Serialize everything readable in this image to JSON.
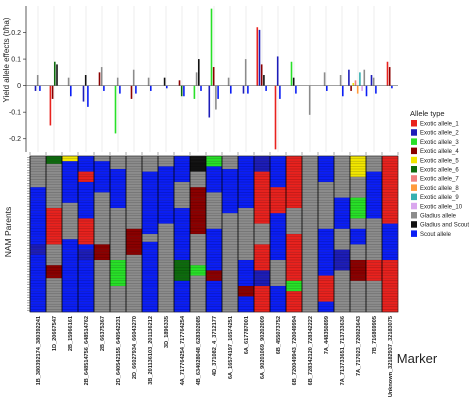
{
  "chart_data": [
    {
      "type": "bar",
      "ylabel": "Yield allele effects (t/ha)",
      "ylim": [
        -0.25,
        0.3
      ],
      "yticks": [
        -0.2,
        -0.1,
        0,
        0.1,
        0.2
      ],
      "ytick_labels": [
        "-0.2",
        "-0.1",
        "0",
        "0.1",
        "0.2"
      ],
      "categories": [
        "1B_380392174_380392241",
        "1D_20667547",
        "2B_15966161",
        "2B_648514756_648514762",
        "2B_66375367",
        "2D_640542155_640542231",
        "2D_66027934_66043270",
        "3B_201136103_201136212",
        "3D_1896335",
        "4A_717764254_717764254",
        "4B_634028048_628302085",
        "4D_371082_4_3712177",
        "6A_16574197_16574251",
        "6A_617787001",
        "6A_90201069_90202009",
        "6B_455073752",
        "6B_720049943_720049994",
        "6B_728342120_728342222",
        "7A_448350899",
        "7A_713733651_713733636",
        "7A_717023_720023643",
        "7B_716869905",
        "Unknown_32182937_32183075"
      ],
      "series": [
        {
          "name": "Exotic allele_1",
          "values": [
            0,
            -0.15,
            0,
            0,
            0,
            0,
            0,
            0,
            0,
            0,
            0,
            0,
            0,
            0,
            0.22,
            -0.24,
            0,
            0,
            0,
            0,
            0,
            0,
            0.09
          ]
        },
        {
          "name": "Exotic allele_2",
          "values": [
            -0.02,
            0,
            0,
            -0.06,
            0,
            0,
            0,
            0,
            0,
            0,
            0,
            -0.12,
            0,
            -0.03,
            0.21,
            0.11,
            0,
            0,
            0,
            0,
            0.06,
            0.04,
            0
          ]
        },
        {
          "name": "Exotic allele_3",
          "values": [
            0,
            0,
            0,
            0,
            0,
            -0.18,
            0,
            0,
            0,
            0,
            -0.05,
            0.29,
            0,
            0,
            0,
            0,
            0.09,
            0,
            0,
            0,
            0,
            0,
            0
          ]
        },
        {
          "name": "Exotic allele_4",
          "values": [
            0,
            -0.05,
            0,
            0,
            0.05,
            0,
            -0.05,
            0,
            0,
            0.02,
            0,
            0.07,
            0,
            0,
            0.08,
            0,
            0,
            0,
            0,
            0,
            -0.02,
            0,
            0.07
          ]
        },
        {
          "name": "Exotic allele_5",
          "values": [
            0,
            0,
            0,
            0,
            0,
            0,
            0,
            0,
            0,
            0,
            0,
            0,
            0,
            0,
            0,
            0,
            0,
            0,
            0,
            0,
            0.01,
            0,
            0
          ]
        },
        {
          "name": "Exotic allele_6",
          "values": [
            0,
            0.09,
            0,
            0,
            0,
            0,
            0,
            0,
            0,
            -0.04,
            0,
            0,
            0,
            0,
            0,
            0,
            0,
            0,
            0,
            0,
            0,
            0,
            0
          ]
        },
        {
          "name": "Exotic allele_7",
          "values": [
            0,
            0,
            0,
            0,
            0,
            0,
            0,
            0,
            0,
            0,
            0,
            0,
            0,
            0,
            0,
            0,
            0,
            0,
            0,
            0,
            0.02,
            0,
            0
          ]
        },
        {
          "name": "Exotic allele_8",
          "values": [
            0,
            0,
            0,
            0,
            0,
            0,
            0,
            0,
            0,
            0,
            0,
            0,
            0,
            0,
            0,
            0,
            0,
            0,
            0,
            0,
            -0.03,
            0,
            0
          ]
        },
        {
          "name": "Exotic allele_9",
          "values": [
            0,
            0,
            0,
            0,
            0,
            0,
            0,
            0,
            0,
            0,
            0,
            0,
            0,
            0,
            0,
            0,
            0,
            0,
            0,
            0,
            0.05,
            0,
            0
          ]
        },
        {
          "name": "Exotic allele_10",
          "values": [
            0,
            0,
            0,
            0,
            0,
            0,
            0,
            0,
            0,
            0,
            0,
            0,
            0,
            0,
            0,
            0,
            0,
            0,
            0,
            0,
            -0.02,
            0,
            0
          ]
        },
        {
          "name": "Gladius allele",
          "values": [
            0.04,
            0,
            0.03,
            0,
            0.07,
            0.03,
            0.06,
            0.03,
            0,
            0,
            0.05,
            -0.09,
            0.03,
            0.1,
            0,
            0,
            0,
            -0.11,
            0.05,
            0.04,
            0.06,
            0.03,
            0
          ]
        },
        {
          "name": "Gladius and Scout",
          "values": [
            0,
            0.08,
            0,
            0.04,
            0,
            0,
            0,
            0,
            0.03,
            0,
            0.1,
            0,
            0,
            0,
            0.04,
            0,
            0.03,
            0,
            0,
            0,
            0,
            0,
            0
          ]
        },
        {
          "name": "Scout allele",
          "values": [
            -0.02,
            0,
            -0.04,
            -0.08,
            -0.02,
            -0.03,
            -0.03,
            -0.02,
            -0.01,
            -0.04,
            -0.02,
            -0.05,
            -0.03,
            -0.03,
            -0.02,
            -0.05,
            -0.03,
            0,
            -0.02,
            -0.04,
            -0.04,
            -0.03,
            -0.01
          ]
        }
      ]
    },
    {
      "type": "heatmap",
      "ylabel": "NAM Parents",
      "xlabel": "Marker",
      "row_count": 60,
      "columns": [
        "1B_380392174_380392241",
        "1D_20667547",
        "2B_15966161",
        "2B_648514756_648514762",
        "2B_66375367",
        "2D_640542155_640542231",
        "2D_66027934_66043270",
        "3B_201136103_201136212",
        "3D_1896335",
        "4A_717764254_717764254",
        "4B_634028048_628302085",
        "4D_371082_4_3712177",
        "6A_16574197_16574251",
        "6A_617787001",
        "6A_90201069_90202009",
        "6B_455073752",
        "6B_720049943_720049994",
        "6B_728342120_728342222",
        "7A_448350899",
        "7A_713733651_713733636",
        "7A_717023_720023643",
        "7B_716869905",
        "Unknown_32182937_32183075"
      ],
      "column_patterns": [
        {
          "base": "Scout allele",
          "blocks": [
            [
              0,
              12,
              "Gladius allele"
            ],
            [
              34,
              38,
              "Exotic allele_2"
            ]
          ]
        },
        {
          "base": "Gladius allele",
          "blocks": [
            [
              0,
              3,
              "Exotic allele_6"
            ],
            [
              20,
              34,
              "Exotic allele_1"
            ],
            [
              42,
              47,
              "Exotic allele_4"
            ]
          ]
        },
        {
          "base": "Scout allele",
          "blocks": [
            [
              0,
              2,
              "Exotic allele_5"
            ],
            [
              18,
              32,
              "Gladius allele"
            ]
          ]
        },
        {
          "base": "Scout allele",
          "blocks": [
            [
              6,
              10,
              "Exotic allele_1"
            ],
            [
              24,
              34,
              "Exotic allele_1"
            ],
            [
              36,
              40,
              "Exotic allele_2"
            ]
          ]
        },
        {
          "base": "Gladius allele",
          "blocks": [
            [
              2,
              14,
              "Scout allele"
            ],
            [
              34,
              40,
              "Exotic allele_4"
            ]
          ]
        },
        {
          "base": "Gladius allele",
          "blocks": [
            [
              5,
              20,
              "Scout allele"
            ],
            [
              40,
              50,
              "Exotic allele_3"
            ]
          ]
        },
        {
          "base": "Gladius allele",
          "blocks": [
            [
              28,
              38,
              "Exotic allele_4"
            ]
          ]
        },
        {
          "base": "Scout allele",
          "blocks": [
            [
              0,
              6,
              "Gladius allele"
            ],
            [
              30,
              33,
              "Gladius allele"
            ]
          ]
        },
        {
          "base": "Gladius allele",
          "blocks": [
            [
              4,
              26,
              "Scout allele"
            ]
          ]
        },
        {
          "base": "Scout allele",
          "blocks": [
            [
              10,
              20,
              "Gladius allele"
            ],
            [
              40,
              48,
              "Exotic allele_6"
            ]
          ]
        },
        {
          "base": "Gladius allele",
          "blocks": [
            [
              0,
              6,
              "Gladius and Scout"
            ],
            [
              12,
              30,
              "Exotic allele_4"
            ],
            [
              42,
              46,
              "Exotic allele_3"
            ]
          ]
        },
        {
          "base": "Scout allele",
          "blocks": [
            [
              0,
              4,
              "Exotic allele_3"
            ],
            [
              14,
              28,
              "Gladius allele"
            ],
            [
              44,
              48,
              "Exotic allele_4"
            ]
          ]
        },
        {
          "base": "Gladius allele",
          "blocks": [
            [
              5,
              22,
              "Scout allele"
            ]
          ]
        },
        {
          "base": "Scout allele",
          "blocks": [
            [
              20,
              40,
              "Gladius allele"
            ],
            [
              50,
              54,
              "Exotic allele_4"
            ]
          ]
        },
        {
          "base": "Exotic allele_1",
          "blocks": [
            [
              0,
              6,
              "Exotic allele_2"
            ],
            [
              26,
              34,
              "Gladius allele"
            ],
            [
              44,
              50,
              "Exotic allele_2"
            ]
          ]
        },
        {
          "base": "Scout allele",
          "blocks": [
            [
              12,
              22,
              "Exotic allele_1"
            ],
            [
              40,
              50,
              "Gladius allele"
            ]
          ]
        },
        {
          "base": "Exotic allele_1",
          "blocks": [
            [
              20,
              30,
              "Gladius allele"
            ],
            [
              48,
              52,
              "Exotic allele_3"
            ]
          ]
        },
        {
          "base": "Gladius allele",
          "blocks": []
        },
        {
          "base": "Scout allele",
          "blocks": [
            [
              10,
              28,
              "Gladius allele"
            ],
            [
              46,
              56,
              "Exotic allele_1"
            ]
          ]
        },
        {
          "base": "Gladius allele",
          "blocks": [
            [
              16,
              28,
              "Scout allele"
            ],
            [
              36,
              44,
              "Exotic allele_2"
            ]
          ]
        },
        {
          "base": "Gladius allele",
          "blocks": [
            [
              0,
              8,
              "Exotic allele_5"
            ],
            [
              16,
              24,
              "Exotic allele_3"
            ],
            [
              28,
              34,
              "Scout allele"
            ],
            [
              40,
              48,
              "Exotic allele_4"
            ]
          ]
        },
        {
          "base": "Gladius allele",
          "blocks": [
            [
              6,
              24,
              "Scout allele"
            ],
            [
              40,
              48,
              "Exotic allele_1"
            ]
          ]
        },
        {
          "base": "Exotic allele_1",
          "blocks": [
            [
              26,
              40,
              "Scout allele"
            ]
          ]
        }
      ]
    }
  ],
  "legend": {
    "title": "Allele type",
    "items": [
      {
        "label": "Exotic allele_1",
        "color": "#e8221e"
      },
      {
        "label": "Exotic allele_2",
        "color": "#1d1db8"
      },
      {
        "label": "Exotic allele_3",
        "color": "#28e028"
      },
      {
        "label": "Exotic allele_4",
        "color": "#8b0000"
      },
      {
        "label": "Exotic allele_5",
        "color": "#f2e600"
      },
      {
        "label": "Exotic allele_6",
        "color": "#0d6b0d"
      },
      {
        "label": "Exotic allele_7",
        "color": "#f08080"
      },
      {
        "label": "Exotic allele_8",
        "color": "#ff9a3c"
      },
      {
        "label": "Exotic allele_9",
        "color": "#36b0b0"
      },
      {
        "label": "Exotic allele_10",
        "color": "#d9a6ee"
      },
      {
        "label": "Gladius allele",
        "color": "#8c8c8c"
      },
      {
        "label": "Gladius and Scout",
        "color": "#111111"
      },
      {
        "label": "Scout allele",
        "color": "#0b1ef5"
      }
    ]
  }
}
